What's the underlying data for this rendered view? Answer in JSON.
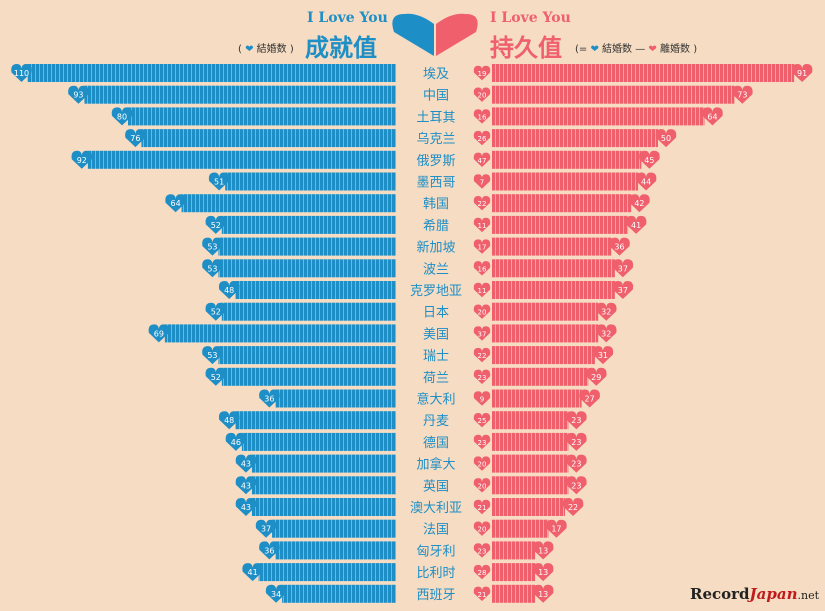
{
  "header": {
    "left_title": "I Love You",
    "left_big": "成就值",
    "left_legend_open": "(",
    "left_legend_item": "結婚数",
    "left_legend_close": ")",
    "right_title": "I Love You",
    "right_big": "持久值",
    "right_legend_open": "(=",
    "right_legend_item1": "結婚数",
    "right_legend_minus": "—",
    "right_legend_item2": "離婚数",
    "right_legend_close": ")"
  },
  "colors": {
    "blue": "#1e8ec6",
    "red": "#ef5f6c",
    "background": "#f5dcc2"
  },
  "watermark": {
    "record": "Record",
    "japan": "Japan",
    "net": ".net"
  },
  "chart_data": {
    "type": "bar",
    "title": "I Love You 成就值 / 持久值",
    "categories": [
      "埃及",
      "中国",
      "土耳其",
      "乌克兰",
      "俄罗斯",
      "墨西哥",
      "韩国",
      "希腊",
      "新加坡",
      "波兰",
      "克罗地亚",
      "日本",
      "美国",
      "瑞士",
      "荷兰",
      "意大利",
      "丹麦",
      "德国",
      "加拿大",
      "英国",
      "澳大利亚",
      "法国",
      "匈牙利",
      "比利时",
      "西班牙"
    ],
    "series": [
      {
        "name": "結婚数",
        "values": [
          110,
          93,
          80,
          76,
          92,
          51,
          64,
          52,
          53,
          53,
          48,
          52,
          69,
          53,
          52,
          36,
          48,
          46,
          43,
          43,
          43,
          37,
          36,
          41,
          34
        ]
      },
      {
        "name": "離婚数",
        "values": [
          19,
          20,
          16,
          26,
          47,
          7,
          22,
          11,
          17,
          16,
          11,
          20,
          37,
          22,
          23,
          9,
          25,
          23,
          20,
          20,
          21,
          20,
          23,
          28,
          21
        ]
      },
      {
        "name": "結婚数 − 離婚数",
        "values": [
          91,
          73,
          64,
          50,
          45,
          44,
          42,
          41,
          36,
          37,
          37,
          32,
          32,
          31,
          29,
          27,
          23,
          23,
          23,
          23,
          22,
          17,
          13,
          13,
          13
        ]
      }
    ],
    "xlabel": "",
    "ylabel": "",
    "ylim": [
      0,
      120
    ]
  }
}
